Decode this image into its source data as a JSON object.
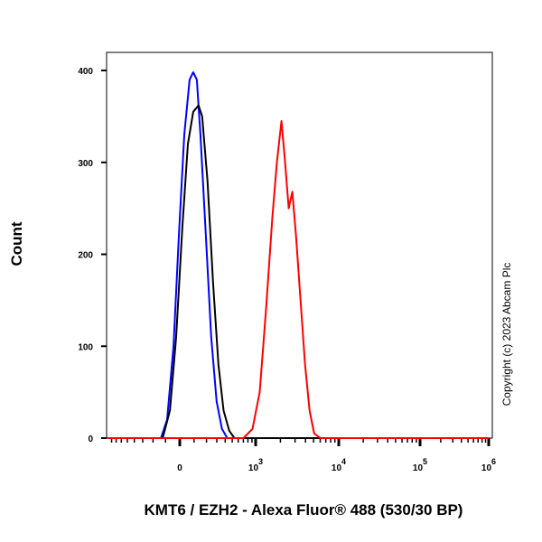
{
  "chart_data": {
    "type": "line",
    "title": "",
    "xlabel": "KMT6 / EZH2 - Alexa Fluor® 488 (530/30 BP)",
    "ylabel": "Count",
    "x_scale": "biexponential",
    "xlim": [
      -900,
      1000000
    ],
    "ylim": [
      0,
      420
    ],
    "grid": false,
    "x_ticks": [
      {
        "value": 0,
        "base": "0",
        "exp": ""
      },
      {
        "value": 1000,
        "base": "10",
        "exp": "3"
      },
      {
        "value": 10000,
        "base": "10",
        "exp": "4"
      },
      {
        "value": 100000,
        "base": "10",
        "exp": "5"
      },
      {
        "value": 1000000,
        "base": "10",
        "exp": "6"
      }
    ],
    "y_ticks": [
      "0",
      "100",
      "200",
      "300",
      "400"
    ],
    "series": [
      {
        "color": "#0000ff",
        "points": [
          [
            -134,
            0
          ],
          [
            -88,
            20
          ],
          [
            -43,
            100
          ],
          [
            -6,
            220
          ],
          [
            31,
            330
          ],
          [
            68,
            390
          ],
          [
            94,
            398
          ],
          [
            121,
            390
          ],
          [
            149,
            330
          ],
          [
            194,
            220
          ],
          [
            243,
            110
          ],
          [
            298,
            40
          ],
          [
            359,
            10
          ],
          [
            428,
            0
          ]
        ]
      },
      {
        "color": "#000000",
        "points": [
          [
            -121,
            0
          ],
          [
            -68,
            30
          ],
          [
            -25,
            110
          ],
          [
            18,
            230
          ],
          [
            56,
            320
          ],
          [
            94,
            355
          ],
          [
            134,
            362
          ],
          [
            163,
            350
          ],
          [
            209,
            280
          ],
          [
            261,
            170
          ],
          [
            318,
            80
          ],
          [
            379,
            30
          ],
          [
            456,
            8
          ],
          [
            536,
            0
          ]
        ]
      },
      {
        "color": "#ff0000",
        "points": [
          [
            701,
            0
          ],
          [
            912,
            10
          ],
          [
            1121,
            50
          ],
          [
            1339,
            140
          ],
          [
            1598,
            240
          ],
          [
            1814,
            300
          ],
          [
            2059,
            345
          ],
          [
            2277,
            300
          ],
          [
            2518,
            250
          ],
          [
            2783,
            268
          ],
          [
            3077,
            220
          ],
          [
            3486,
            150
          ],
          [
            3952,
            80
          ],
          [
            4481,
            30
          ],
          [
            5076,
            5
          ],
          [
            6049,
            0
          ]
        ]
      }
    ],
    "annotation": "Copyright (c) 2023 Abcam Plc"
  }
}
